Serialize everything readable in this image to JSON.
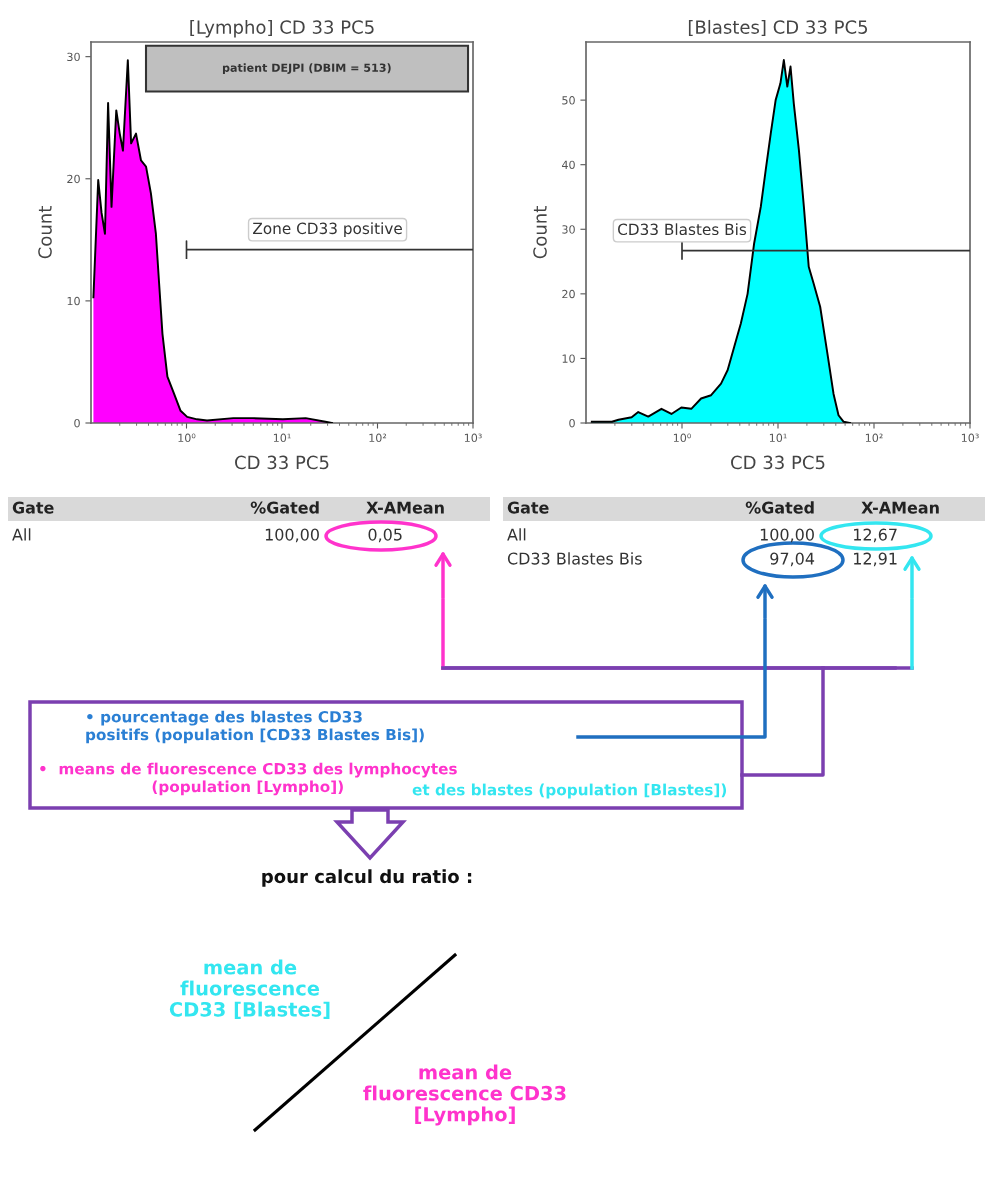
{
  "chart_data": [
    {
      "type": "area",
      "title": "[Lympho] CD 33 PC5",
      "xlabel": "CD 33 PC5",
      "ylabel": "Count",
      "log": "x",
      "xlim": [
        0.1,
        1000
      ],
      "xticks": [
        {
          "value": 1,
          "label": "10⁰"
        },
        {
          "value": 10,
          "label": "10¹"
        },
        {
          "value": 100,
          "label": "10²"
        },
        {
          "value": 1000,
          "label": "10³"
        }
      ],
      "ylim": [
        0,
        31.2
      ],
      "yticks": [
        0,
        10,
        20,
        30
      ],
      "series": [
        {
          "color": "#ff00ff",
          "x": [
            0.106,
            0.119,
            0.129,
            0.14,
            0.151,
            0.164,
            0.184,
            0.2,
            0.216,
            0.243,
            0.263,
            0.296,
            0.334,
            0.377,
            0.424,
            0.478,
            0.517,
            0.56,
            0.631,
            0.74,
            0.867,
            1.016,
            1.29,
            1.64,
            3.09,
            4.97,
            10.2,
            17.7,
            28.5,
            33.4
          ],
          "values": [
            10.3,
            19.9,
            17.2,
            15.5,
            26.2,
            17.7,
            25.6,
            23.7,
            22.3,
            29.7,
            22.9,
            23.7,
            21.5,
            21,
            18.8,
            15.5,
            11.4,
            7.3,
            3.8,
            2.4,
            1.0,
            0.5,
            0.3,
            0.2,
            0.4,
            0.4,
            0.3,
            0.4,
            0.1,
            0
          ]
        },
        {
          "type": "line",
          "color": "#333333",
          "x": [
            1,
            1,
            1,
            1000
          ],
          "values": [
            13.5,
            14.9,
            14.2,
            14.2
          ]
        }
      ],
      "annotations": [
        {
          "text": "Zone CD33 positive",
          "x": 30,
          "y": 14.2
        },
        "patient DEJPI (DBIM = 513)",
        "Gate",
        "%Gated",
        "X-AMean",
        "All",
        "100,00",
        "0,05"
      ]
    },
    {
      "type": "area",
      "title": "[Blastes] CD 33 PC5",
      "xlabel": "CD 33 PC5",
      "ylabel": "Count",
      "log": "x",
      "xlim": [
        0.1,
        1000
      ],
      "xticks": [
        {
          "value": 1,
          "label": "10⁰"
        },
        {
          "value": 10,
          "label": "10¹"
        },
        {
          "value": 100,
          "label": "10²"
        },
        {
          "value": 1000,
          "label": "10³"
        }
      ],
      "ylim": [
        0,
        59
      ],
      "yticks": [
        0,
        10,
        20,
        30,
        40,
        50
      ],
      "series": [
        {
          "color": "#00ffff",
          "x": [
            0.115,
            0.186,
            0.218,
            0.299,
            0.35,
            0.445,
            0.611,
            0.776,
            0.984,
            1.25,
            1.58,
            2.01,
            2.55,
            2.99,
            3.5,
            4.1,
            4.82,
            5.64,
            6.62,
            7.45,
            8.4,
            9.45,
            10.6,
            11.5,
            12.5,
            13.5,
            14.6,
            16.5,
            18.6,
            20.9,
            23.5,
            27.5,
            32.3,
            37.9,
            42.7,
            48.1,
            56.3
          ],
          "values": [
            0.2,
            0.2,
            0.5,
            0.9,
            1.7,
            1.0,
            2.2,
            1.4,
            2.4,
            2.2,
            3.8,
            4.3,
            6.1,
            8.2,
            11.8,
            15.4,
            20.0,
            27.8,
            33.5,
            39.2,
            44.8,
            50.0,
            52.6,
            56.2,
            52.1,
            55.2,
            49.5,
            42.3,
            33.5,
            24.2,
            21.6,
            18.0,
            11.3,
            4.5,
            1.2,
            0.2,
            0
          ]
        },
        {
          "type": "line",
          "color": "#333333",
          "x": [
            1,
            1,
            1,
            1000
          ],
          "values": [
            25.4,
            28.0,
            26.7,
            26.7
          ]
        }
      ],
      "annotations": [
        {
          "text": "CD33 Blastes Bis",
          "x": 1,
          "y": 26.7
        },
        "Gate",
        "%Gated",
        "X-AMean",
        "All",
        "100,00",
        "12,67",
        "CD33 Blastes Bis",
        "97,04",
        "12,91"
      ]
    },
    {
      "type": "other",
      "annotations": [
        "• pourcentage des blastes CD33\npositifs (population [CD33 Blastes Bis])",
        "•  means de fluorescence CD33 des lymphocytes\n(population [Lympho])",
        "et des blastes (population [Blastes])",
        "pour calcul du ratio :",
        "mean de\nfluorescence\nCD33 [Blastes]",
        "mean de\nfluorescence CD33\n[Lympho]"
      ]
    }
  ]
}
